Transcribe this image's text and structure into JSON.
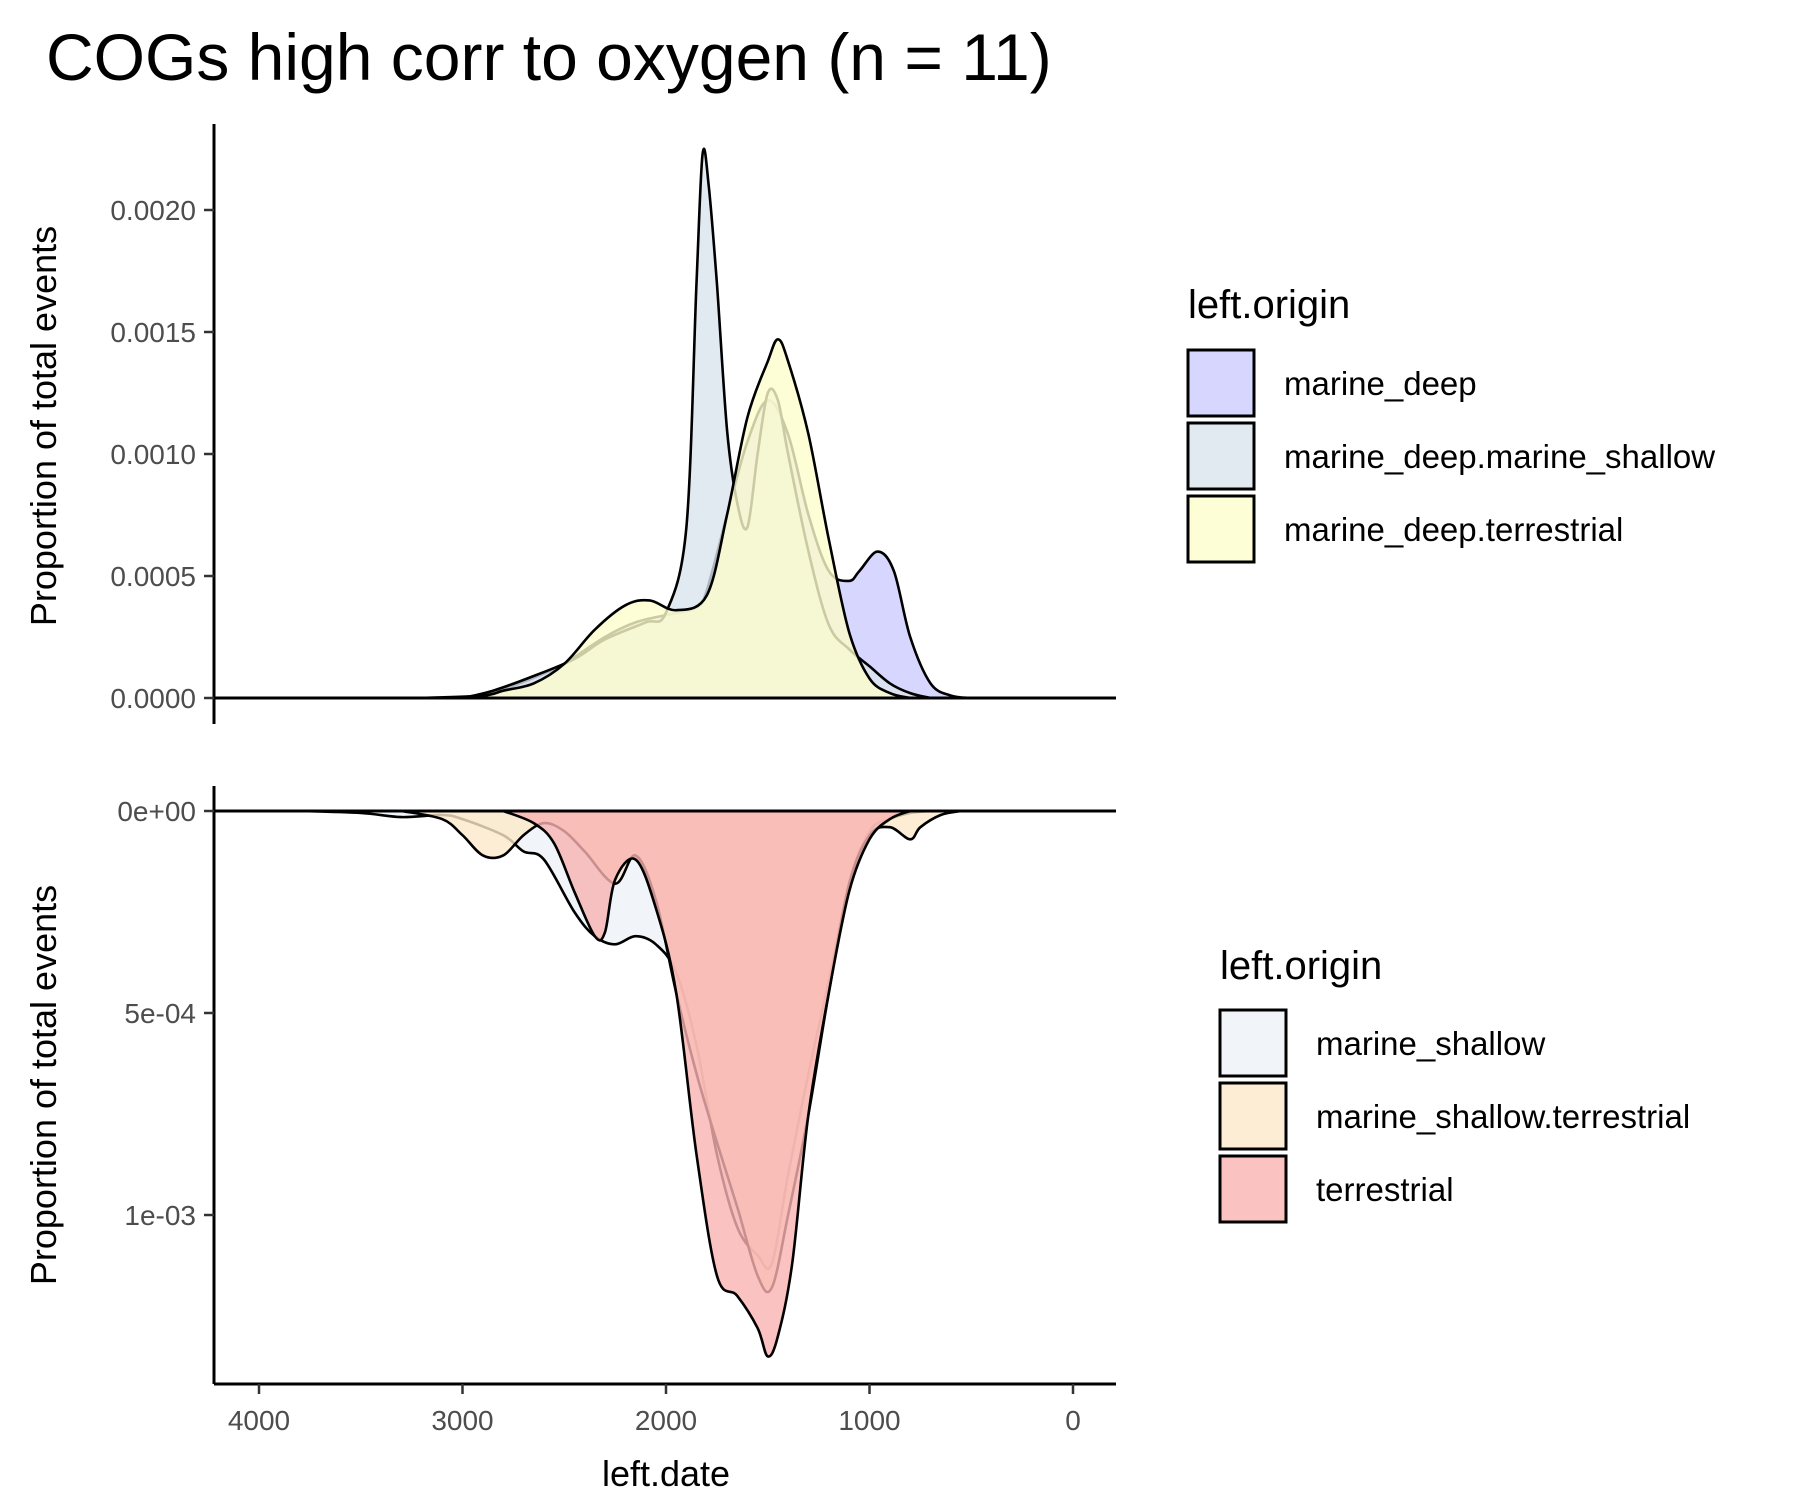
{
  "title": "COGs high corr to oxygen (n = 11)",
  "chart_data": [
    {
      "type": "area",
      "panel": "top",
      "title": "COGs high corr to oxygen (n = 11)",
      "xlabel": "",
      "ylabel": "Proportion of total events",
      "x_reversed": true,
      "xlim": [
        4200,
        -200
      ],
      "ylim": [
        0,
        0.00225
      ],
      "y_ticks": [
        {
          "value": 0,
          "label": "0.0000"
        },
        {
          "value": 0.0005,
          "label": "0.0005"
        },
        {
          "value": 0.001,
          "label": "0.0010"
        },
        {
          "value": 0.0015,
          "label": "0.0015"
        },
        {
          "value": 0.002,
          "label": "0.0020"
        }
      ],
      "legend": {
        "title": "left.origin",
        "placement": "right",
        "entries": [
          "marine_deep",
          "marine_deep.marine_shallow",
          "marine_deep.terrestrial"
        ]
      },
      "series": [
        {
          "name": "marine_deep",
          "color": "#ccccff",
          "points": [
            [
              3000,
              0
            ],
            [
              2900,
              1e-05
            ],
            [
              2750,
              5e-05
            ],
            [
              2600,
              0.0001
            ],
            [
              2500,
              0.00014
            ],
            [
              2300,
              0.00025
            ],
            [
              2150,
              0.00031
            ],
            [
              2000,
              0.00034
            ],
            [
              1850,
              0.00037
            ],
            [
              1800,
              0.00044
            ],
            [
              1700,
              0.00075
            ],
            [
              1600,
              0.00105
            ],
            [
              1500,
              0.00122
            ],
            [
              1400,
              0.00108
            ],
            [
              1300,
              0.00075
            ],
            [
              1200,
              0.00052
            ],
            [
              1100,
              0.00048
            ],
            [
              1050,
              0.00052
            ],
            [
              960,
              0.0006
            ],
            [
              880,
              0.00052
            ],
            [
              800,
              0.00025
            ],
            [
              700,
              6e-05
            ],
            [
              600,
              1e-05
            ],
            [
              500,
              0
            ]
          ]
        },
        {
          "name": "marine_deep.marine_shallow",
          "color": "#dbe5ee",
          "points": [
            [
              3000,
              0
            ],
            [
              2850,
              3e-05
            ],
            [
              2650,
              9e-05
            ],
            [
              2450,
              0.00016
            ],
            [
              2300,
              0.00024
            ],
            [
              2100,
              0.00031
            ],
            [
              2000,
              0.00035
            ],
            [
              1900,
              0.0007
            ],
            [
              1850,
              0.0017
            ],
            [
              1820,
              0.00223
            ],
            [
              1790,
              0.0021
            ],
            [
              1750,
              0.0017
            ],
            [
              1700,
              0.0011
            ],
            [
              1650,
              0.0008
            ],
            [
              1600,
              0.0007
            ],
            [
              1550,
              0.001
            ],
            [
              1500,
              0.00125
            ],
            [
              1450,
              0.00122
            ],
            [
              1400,
              0.001
            ],
            [
              1300,
              0.0006
            ],
            [
              1200,
              0.0003
            ],
            [
              1100,
              0.0002
            ],
            [
              1000,
              0.00013
            ],
            [
              900,
              6e-05
            ],
            [
              800,
              2e-05
            ],
            [
              700,
              0
            ]
          ]
        },
        {
          "name": "marine_deep.terrestrial",
          "color": "#fdfccc",
          "points": [
            [
              3200,
              0
            ],
            [
              2900,
              1e-05
            ],
            [
              2800,
              3e-05
            ],
            [
              2650,
              6e-05
            ],
            [
              2500,
              0.00014
            ],
            [
              2350,
              0.00028
            ],
            [
              2200,
              0.00038
            ],
            [
              2080,
              0.0004
            ],
            [
              1950,
              0.00036
            ],
            [
              1800,
              0.00042
            ],
            [
              1700,
              0.00075
            ],
            [
              1600,
              0.00115
            ],
            [
              1500,
              0.00138
            ],
            [
              1450,
              0.00147
            ],
            [
              1400,
              0.00138
            ],
            [
              1300,
              0.00108
            ],
            [
              1200,
              0.00065
            ],
            [
              1100,
              0.00027
            ],
            [
              1000,
              8e-05
            ],
            [
              900,
              2e-05
            ],
            [
              800,
              0
            ]
          ]
        }
      ]
    },
    {
      "type": "area",
      "panel": "bottom",
      "xlabel": "left.date",
      "ylabel": "Proportion of total events",
      "x_reversed": true,
      "y_reversed": true,
      "xlim": [
        4200,
        -200
      ],
      "ylim": [
        0,
        0.00135
      ],
      "x_ticks": [
        {
          "value": 4000,
          "label": "4000"
        },
        {
          "value": 3000,
          "label": "3000"
        },
        {
          "value": 2000,
          "label": "2000"
        },
        {
          "value": 1000,
          "label": "1000"
        },
        {
          "value": 0,
          "label": "0"
        }
      ],
      "y_ticks": [
        {
          "value": 0,
          "label": "0e+00"
        },
        {
          "value": 0.0005,
          "label": "5e-04"
        },
        {
          "value": 0.001,
          "label": "1e-03"
        }
      ],
      "legend": {
        "title": "left.origin",
        "placement": "right",
        "entries": [
          "marine_shallow",
          "marine_shallow.terrestrial",
          "terrestrial"
        ]
      },
      "series": [
        {
          "name": "marine_shallow",
          "color": "#edf3f8",
          "points": [
            [
              3800,
              0
            ],
            [
              3500,
              5e-06
            ],
            [
              3300,
              1.5e-05
            ],
            [
              3100,
              1e-05
            ],
            [
              3000,
              2e-05
            ],
            [
              2800,
              6e-05
            ],
            [
              2700,
              0.0001
            ],
            [
              2600,
              0.00012
            ],
            [
              2450,
              0.00025
            ],
            [
              2350,
              0.00031
            ],
            [
              2250,
              0.00033
            ],
            [
              2150,
              0.00031
            ],
            [
              2050,
              0.00033
            ],
            [
              1950,
              0.0004
            ],
            [
              1850,
              0.00058
            ],
            [
              1750,
              0.00085
            ],
            [
              1650,
              0.00103
            ],
            [
              1550,
              0.0011
            ],
            [
              1480,
              0.00112
            ],
            [
              1400,
              0.0009
            ],
            [
              1300,
              0.00065
            ],
            [
              1200,
              0.00042
            ],
            [
              1100,
              0.00018
            ],
            [
              1000,
              5e-05
            ],
            [
              900,
              2e-05
            ],
            [
              800,
              5e-06
            ],
            [
              700,
              0
            ]
          ]
        },
        {
          "name": "marine_shallow.terrestrial",
          "color": "#fde8c9",
          "points": [
            [
              3300,
              0
            ],
            [
              3100,
              2e-05
            ],
            [
              3000,
              6e-05
            ],
            [
              2900,
              0.00011
            ],
            [
              2800,
              0.00011
            ],
            [
              2700,
              6e-05
            ],
            [
              2600,
              3e-05
            ],
            [
              2500,
              5e-05
            ],
            [
              2400,
              0.0001
            ],
            [
              2250,
              0.00018
            ],
            [
              2150,
              0.00011
            ],
            [
              2050,
              0.00022
            ],
            [
              1950,
              0.00045
            ],
            [
              1850,
              0.00065
            ],
            [
              1750,
              0.00082
            ],
            [
              1650,
              0.00098
            ],
            [
              1550,
              0.00115
            ],
            [
              1480,
              0.00118
            ],
            [
              1400,
              0.001
            ],
            [
              1300,
              0.00075
            ],
            [
              1200,
              0.00045
            ],
            [
              1100,
              0.00018
            ],
            [
              1000,
              6e-05
            ],
            [
              900,
              4e-05
            ],
            [
              800,
              7e-05
            ],
            [
              750,
              4e-05
            ],
            [
              650,
              1e-05
            ],
            [
              550,
              0
            ]
          ]
        },
        {
          "name": "terrestrial",
          "color": "#f9b3b2",
          "points": [
            [
              2800,
              0
            ],
            [
              2650,
              3e-05
            ],
            [
              2550,
              8e-05
            ],
            [
              2450,
              0.0002
            ],
            [
              2350,
              0.00031
            ],
            [
              2300,
              0.0003
            ],
            [
              2250,
              0.00017
            ],
            [
              2150,
              0.00012
            ],
            [
              2050,
              0.00024
            ],
            [
              1950,
              0.00045
            ],
            [
              1850,
              0.00085
            ],
            [
              1750,
              0.00115
            ],
            [
              1650,
              0.0012
            ],
            [
              1550,
              0.00128
            ],
            [
              1500,
              0.00135
            ],
            [
              1450,
              0.0013
            ],
            [
              1380,
              0.00112
            ],
            [
              1300,
              0.00075
            ],
            [
              1200,
              0.00045
            ],
            [
              1100,
              0.0002
            ],
            [
              1000,
              7e-05
            ],
            [
              900,
              2e-05
            ],
            [
              800,
              0
            ]
          ]
        }
      ]
    }
  ]
}
